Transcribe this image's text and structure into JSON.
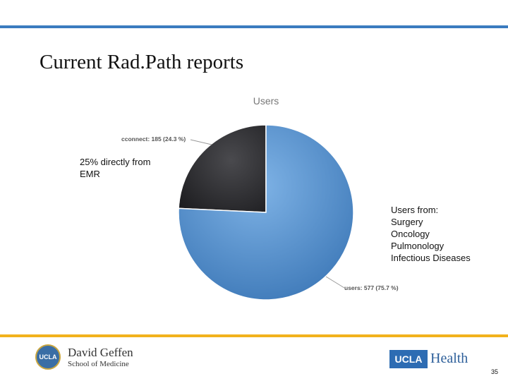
{
  "slide": {
    "title": "Current Rad.Path reports",
    "note_left": "25% directly from\nEMR",
    "note_right": "Users from:\nSurgery\nOncology\nPulmonology\nInfectious Diseases",
    "page_number": "35"
  },
  "logos": {
    "seal_text": "UCLA",
    "school_name": "David Geffen",
    "school_sub": "School of Medicine",
    "health_box": "UCLA",
    "health_word": "Health"
  },
  "colors": {
    "top_rule": "#3a7bbf",
    "bottom_rule": "#f2b21c"
  },
  "chart_data": {
    "type": "pie",
    "title": "Users",
    "slices": [
      {
        "name": "cconnect",
        "value": 185,
        "percent": 24.3,
        "label": "cconnect: 185 (24.3 %)",
        "color": "#2a2a2d"
      },
      {
        "name": "users",
        "value": 577,
        "percent": 75.7,
        "label": "users: 577 (75.7 %)",
        "color": "#4a87c8"
      }
    ]
  }
}
